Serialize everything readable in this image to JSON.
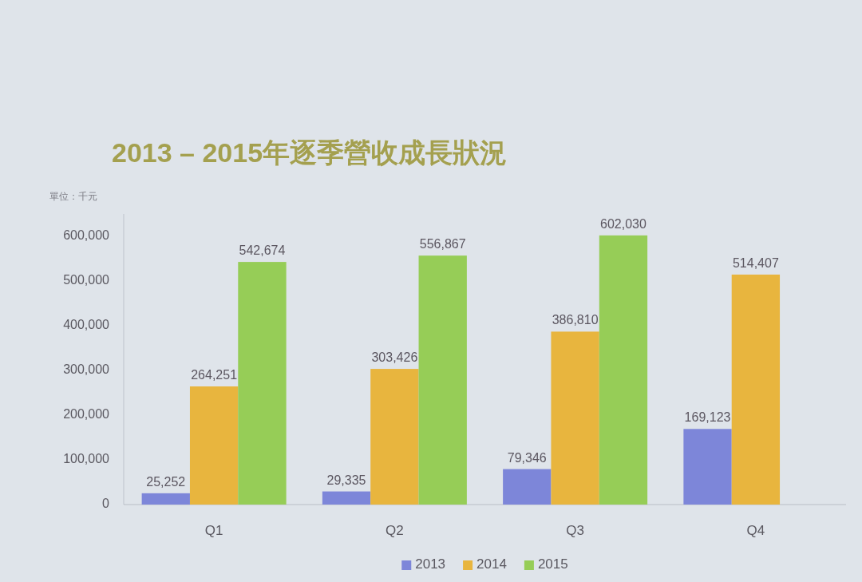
{
  "chart_data": {
    "type": "bar",
    "title": "2013 – 2015年逐季營收成長狀況",
    "ylabel": "單位：千元",
    "categories": [
      "Q1",
      "Q2",
      "Q3",
      "Q4"
    ],
    "series": [
      {
        "name": "2013",
        "color": "#7d86d9",
        "values": [
          25252,
          29335,
          79346,
          169123
        ],
        "value_labels": [
          "25,252",
          "29,335",
          "79,346",
          "169,123"
        ]
      },
      {
        "name": "2014",
        "color": "#e8b53e",
        "values": [
          264251,
          303426,
          386810,
          514407
        ],
        "value_labels": [
          "264,251",
          "303,426",
          "386,810",
          "514,407"
        ]
      },
      {
        "name": "2015",
        "color": "#96cd57",
        "values": [
          542674,
          556867,
          602030,
          null
        ],
        "value_labels": [
          "542,674",
          "556,867",
          "602,030",
          null
        ]
      }
    ],
    "ylim": [
      0,
      650000
    ],
    "yticks": [
      0,
      {
        "value": 100000,
        "label": "100,000"
      },
      {
        "value": 200000,
        "label": "200,000"
      },
      {
        "value": 300000,
        "label": "300,000"
      },
      {
        "value": 400000,
        "label": "400,000"
      },
      {
        "value": 500000,
        "label": "500,000"
      },
      {
        "value": 600000,
        "label": "600,000"
      }
    ],
    "legend": "bottom"
  }
}
